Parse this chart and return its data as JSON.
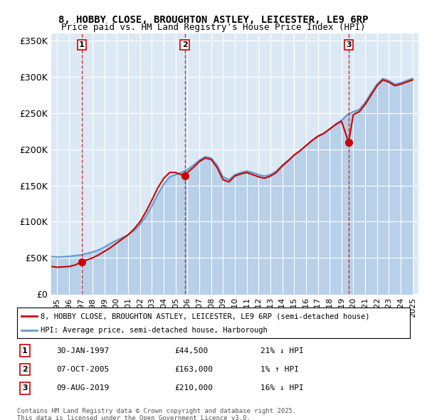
{
  "title": "8, HOBBY CLOSE, BROUGHTON ASTLEY, LEICESTER, LE9 6RP",
  "subtitle": "Price paid vs. HM Land Registry's House Price Index (HPI)",
  "legend_line1": "8, HOBBY CLOSE, BROUGHTON ASTLEY, LEICESTER, LE9 6RP (semi-detached house)",
  "legend_line2": "HPI: Average price, semi-detached house, Harborough",
  "footer1": "Contains HM Land Registry data © Crown copyright and database right 2025.",
  "footer2": "This data is licensed under the Open Government Licence v3.0.",
  "transactions": [
    {
      "num": 1,
      "date": "30-JAN-1997",
      "price": 44500,
      "pct": "21%",
      "dir": "↓",
      "x_year": 1997.08
    },
    {
      "num": 2,
      "date": "07-OCT-2005",
      "price": 163000,
      "pct": "1%",
      "dir": "↑",
      "x_year": 2005.77
    },
    {
      "num": 3,
      "date": "09-AUG-2019",
      "price": 210000,
      "pct": "16%",
      "dir": "↓",
      "x_year": 2019.6
    }
  ],
  "ylim": [
    0,
    360000
  ],
  "yticks": [
    0,
    50000,
    100000,
    150000,
    200000,
    250000,
    300000,
    350000
  ],
  "ytick_labels": [
    "£0",
    "£50K",
    "£100K",
    "£150K",
    "£200K",
    "£250K",
    "£300K",
    "£350K"
  ],
  "xlim": [
    1994.5,
    2025.5
  ],
  "xticks": [
    1995,
    1996,
    1997,
    1998,
    1999,
    2000,
    2001,
    2002,
    2003,
    2004,
    2005,
    2006,
    2007,
    2008,
    2009,
    2010,
    2011,
    2012,
    2013,
    2014,
    2015,
    2016,
    2017,
    2018,
    2019,
    2020,
    2021,
    2022,
    2023,
    2024,
    2025
  ],
  "bg_color": "#dce9f5",
  "plot_bg_color": "#dce9f5",
  "red_color": "#cc0000",
  "blue_color": "#6699cc",
  "hpi_data": {
    "years": [
      1994.5,
      1995.0,
      1995.5,
      1996.0,
      1996.5,
      1997.0,
      1997.5,
      1998.0,
      1998.5,
      1999.0,
      1999.5,
      2000.0,
      2000.5,
      2001.0,
      2001.5,
      2002.0,
      2002.5,
      2003.0,
      2003.5,
      2004.0,
      2004.5,
      2005.0,
      2005.5,
      2006.0,
      2006.5,
      2007.0,
      2007.5,
      2008.0,
      2008.5,
      2009.0,
      2009.5,
      2010.0,
      2010.5,
      2011.0,
      2011.5,
      2012.0,
      2012.5,
      2013.0,
      2013.5,
      2014.0,
      2014.5,
      2015.0,
      2015.5,
      2016.0,
      2016.5,
      2017.0,
      2017.5,
      2018.0,
      2018.5,
      2019.0,
      2019.5,
      2020.0,
      2020.5,
      2021.0,
      2021.5,
      2022.0,
      2022.5,
      2023.0,
      2023.5,
      2024.0,
      2024.5,
      2025.0
    ],
    "values": [
      52000,
      51000,
      51500,
      52000,
      53000,
      54000,
      56000,
      58000,
      61000,
      65000,
      70000,
      74000,
      78000,
      82000,
      88000,
      96000,
      108000,
      122000,
      138000,
      152000,
      162000,
      165000,
      168000,
      172000,
      178000,
      185000,
      190000,
      188000,
      178000,
      162000,
      158000,
      165000,
      168000,
      170000,
      168000,
      165000,
      163000,
      165000,
      170000,
      178000,
      185000,
      192000,
      198000,
      205000,
      212000,
      218000,
      222000,
      228000,
      235000,
      240000,
      248000,
      252000,
      255000,
      265000,
      278000,
      290000,
      298000,
      295000,
      290000,
      292000,
      295000,
      298000
    ]
  },
  "property_data": {
    "years": [
      1994.5,
      1995.0,
      1995.5,
      1996.0,
      1996.5,
      1997.08,
      1997.5,
      1998.0,
      1998.5,
      1999.0,
      1999.5,
      2000.0,
      2000.5,
      2001.0,
      2001.5,
      2002.0,
      2002.5,
      2003.0,
      2003.5,
      2004.0,
      2004.5,
      2005.0,
      2005.77,
      2006.0,
      2006.5,
      2007.0,
      2007.5,
      2008.0,
      2008.5,
      2009.0,
      2009.5,
      2010.0,
      2010.5,
      2011.0,
      2011.5,
      2012.0,
      2012.5,
      2013.0,
      2013.5,
      2014.0,
      2014.5,
      2015.0,
      2015.5,
      2016.0,
      2016.5,
      2017.0,
      2017.5,
      2018.0,
      2018.5,
      2019.0,
      2019.6,
      2020.0,
      2020.5,
      2021.0,
      2021.5,
      2022.0,
      2022.5,
      2023.0,
      2023.5,
      2024.0,
      2024.5,
      2025.0
    ],
    "values": [
      38000,
      37000,
      37500,
      38000,
      40000,
      44500,
      47000,
      50000,
      54000,
      59000,
      64000,
      70000,
      76000,
      82000,
      90000,
      100000,
      114000,
      130000,
      147000,
      160000,
      168000,
      168000,
      163000,
      168000,
      175000,
      183000,
      188000,
      186000,
      175000,
      158000,
      155000,
      163000,
      166000,
      168000,
      165000,
      162000,
      160000,
      163000,
      168000,
      177000,
      184000,
      192000,
      198000,
      205000,
      212000,
      218000,
      222000,
      228000,
      234000,
      239000,
      210000,
      248000,
      252000,
      262000,
      275000,
      288000,
      296000,
      293000,
      288000,
      290000,
      293000,
      296000
    ]
  }
}
